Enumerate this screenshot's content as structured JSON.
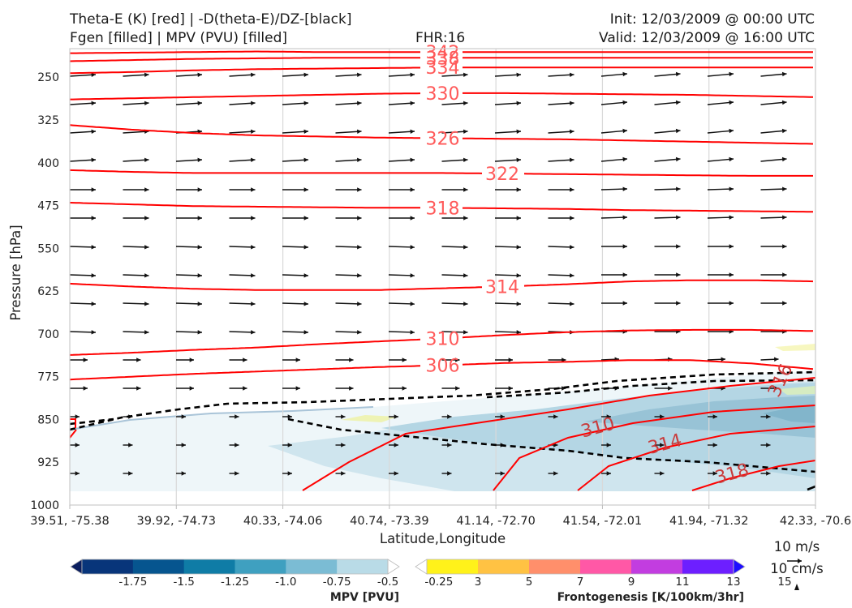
{
  "header": {
    "title_line1": "Theta-E (K) [red] | -D(theta-E)/DZ-[black]",
    "title_line2": "Fgen [filled] | MPV (PVU) [filled]",
    "fhr": "FHR:16",
    "init": "Init: 12/03/2009 @ 00:00 UTC",
    "valid": "Valid: 12/03/2009 @ 16:00 UTC"
  },
  "chart_data": {
    "type": "cross-section",
    "xlabel": "Latitude,Longitude",
    "ylabel": "Pressure [hPa]",
    "x_ticks": [
      "39.51, -75.38",
      "39.92, -74.73",
      "40.33, -74.06",
      "40.74, -73.39",
      "41.14, -72.70",
      "41.54, -72.01",
      "41.94, -71.32",
      "42.33, -70.6"
    ],
    "y_ticks": [
      250,
      325,
      400,
      475,
      550,
      625,
      700,
      775,
      850,
      925,
      1000
    ],
    "ylim": [
      1000,
      200
    ],
    "theta_e_color": "#ff0000",
    "theta_e_contours": [
      {
        "level": 342,
        "label": "342",
        "label_x": 0.5,
        "p": [
          208,
          207,
          206,
          205,
          206,
          206,
          206,
          206,
          206,
          206,
          206,
          206,
          206
        ]
      },
      {
        "level": 338,
        "label": "338",
        "label_x": 0.5,
        "p": [
          222,
          220,
          218,
          217,
          216,
          216,
          216,
          216,
          216,
          216,
          216,
          216,
          216
        ]
      },
      {
        "level": 334,
        "label": "334",
        "label_x": 0.5,
        "p": [
          243,
          241,
          238,
          236,
          235,
          234,
          233,
          233,
          233,
          233,
          233,
          233,
          233
        ]
      },
      {
        "level": 330,
        "label": "330",
        "label_x": 0.5,
        "p": [
          289,
          287,
          285,
          283,
          281,
          279,
          278,
          278,
          279,
          280,
          281,
          283,
          285
        ]
      },
      {
        "level": 326,
        "label": "326",
        "label_x": 0.5,
        "p": [
          334,
          342,
          348,
          352,
          354,
          356,
          357,
          358,
          359,
          361,
          363,
          365,
          367
        ]
      },
      {
        "level": 322,
        "label": "322",
        "label_x": 0.58,
        "p": [
          413,
          416,
          418,
          418,
          418,
          418,
          418,
          419,
          420,
          421,
          422,
          423,
          423
        ]
      },
      {
        "level": 318,
        "label": "318",
        "label_x": 0.5,
        "p": [
          470,
          473,
          476,
          477,
          478,
          479,
          479,
          480,
          481,
          483,
          484,
          485,
          486
        ]
      },
      {
        "level": 314,
        "label": "314",
        "label_x": 0.58,
        "p": [
          612,
          617,
          621,
          623,
          623,
          623,
          620,
          617,
          613,
          608,
          606,
          606,
          608
        ]
      },
      {
        "level": 310,
        "label": "310",
        "label_x": 0.5,
        "p": [
          737,
          733,
          728,
          724,
          718,
          713,
          708,
          702,
          697,
          694,
          693,
          693,
          695
        ]
      },
      {
        "level": 306,
        "label": "306",
        "label_x": 0.5,
        "p": [
          780,
          775,
          770,
          766,
          762,
          758,
          755,
          751,
          749,
          746,
          746,
          752,
          762
        ]
      }
    ],
    "theta_e_lower_labels": [
      {
        "label": "310",
        "x": 0.71,
        "p": 874
      },
      {
        "label": "314",
        "x": 0.8,
        "p": 903
      },
      {
        "label": "318",
        "x": 0.89,
        "p": 955
      },
      {
        "label": "316",
        "x": 0.96,
        "p": 786
      }
    ],
    "stability_color": "#000000",
    "mpv_cbar": {
      "label": "MPV [PVU]",
      "ticks": [
        "-1.75",
        "-1.5",
        "-1.25",
        "-1.0",
        "-0.75",
        "-0.5",
        "-0.25"
      ],
      "colors": [
        "#0a1e5e",
        "#08357a",
        "#06558f",
        "#0f7ca6",
        "#3fa0c0",
        "#7bbcd4",
        "#b9dbe7",
        "#ffffff"
      ]
    },
    "fgen_cbar": {
      "label": "Frontogenesis [K/100km/3hr]",
      "ticks": [
        "3",
        "5",
        "7",
        "9",
        "11",
        "13",
        "15"
      ],
      "colors": [
        "#ffffff",
        "#fff21a",
        "#ffc243",
        "#ff8f6b",
        "#ff58a6",
        "#c23de0",
        "#6d1fff",
        "#1f0eff"
      ]
    },
    "wind_key": {
      "u": "10 m/s",
      "w": "10 cm/s"
    }
  }
}
